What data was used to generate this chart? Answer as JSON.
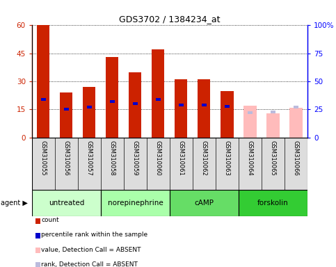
{
  "title": "GDS3702 / 1384234_at",
  "samples": [
    "GSM310055",
    "GSM310056",
    "GSM310057",
    "GSM310058",
    "GSM310059",
    "GSM310060",
    "GSM310061",
    "GSM310062",
    "GSM310063",
    "GSM310064",
    "GSM310065",
    "GSM310066"
  ],
  "groups": [
    {
      "label": "untreated",
      "color": "#ccffcc",
      "n": 3
    },
    {
      "label": "norepinephrine",
      "color": "#aaffaa",
      "n": 3
    },
    {
      "label": "cAMP",
      "color": "#66dd66",
      "n": 3
    },
    {
      "label": "forskolin",
      "color": "#33cc33",
      "n": 3
    }
  ],
  "count_values": [
    60,
    24,
    27,
    43,
    35,
    47,
    31,
    31,
    25,
    null,
    null,
    null
  ],
  "rank_values": [
    34,
    25,
    27,
    32,
    30,
    34,
    29,
    29,
    28,
    null,
    null,
    null
  ],
  "absent_count": [
    null,
    null,
    null,
    null,
    null,
    null,
    null,
    null,
    null,
    17,
    13,
    16
  ],
  "absent_rank": [
    null,
    null,
    null,
    null,
    null,
    null,
    null,
    null,
    null,
    22,
    23,
    27
  ],
  "ylim_left": [
    0,
    60
  ],
  "ylim_right": [
    0,
    100
  ],
  "yticks_left": [
    0,
    15,
    30,
    45,
    60
  ],
  "yticks_right": [
    0,
    25,
    50,
    75,
    100
  ],
  "ytick_labels_left": [
    "0",
    "15",
    "30",
    "45",
    "60"
  ],
  "ytick_labels_right": [
    "0",
    "25",
    "50",
    "75",
    "100%"
  ],
  "count_color": "#cc2200",
  "rank_color": "#0000cc",
  "absent_count_color": "#ffbbbb",
  "absent_rank_color": "#bbbbdd",
  "legend_labels": [
    "count",
    "percentile rank within the sample",
    "value, Detection Call = ABSENT",
    "rank, Detection Call = ABSENT"
  ]
}
